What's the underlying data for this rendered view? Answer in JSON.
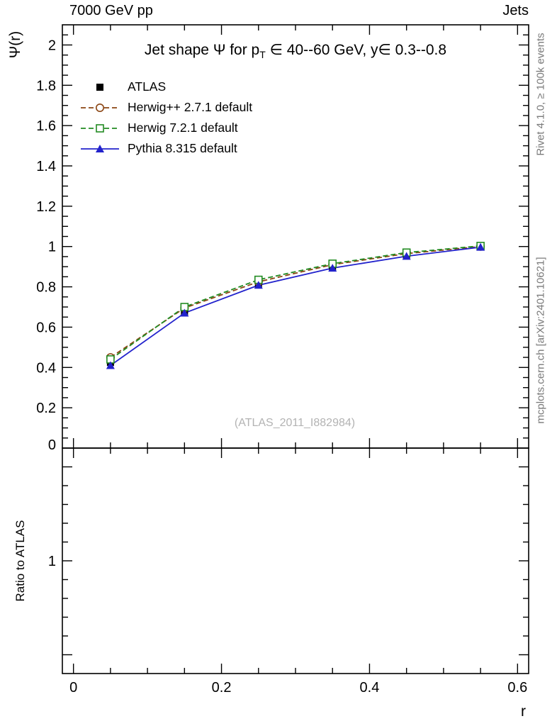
{
  "header": {
    "left": "7000 GeV pp",
    "right": "Jets"
  },
  "side_labels": {
    "top_right": "Rivet 4.1.0, ≥ 100k events",
    "bottom_right": "mcplots.cern.ch [arXiv:2401.10621]"
  },
  "watermark": "(ATLAS_2011_I882984)",
  "chart_data": {
    "type": "line",
    "title": "Jet shape Ψ for pT ∈ 40--60 GeV, y∈ 0.3--0.8",
    "title_parts": {
      "prefix": "Jet shape Ψ for p",
      "sub": "T",
      "suffix": " ∈ 40--60 GeV, y∈ 0.3--0.8"
    },
    "xlabel": "r",
    "ylabel": "Ψ(r)",
    "ratio_ylabel": "Ratio to ATLAS",
    "xlim": [
      -0.015,
      0.615
    ],
    "ylim": [
      0,
      2.1
    ],
    "ratio_ylim": [
      0.4,
      1.6
    ],
    "grid": false,
    "legend_position": "top-left",
    "x": [
      0.05,
      0.15,
      0.25,
      0.35,
      0.45,
      0.55
    ],
    "series": [
      {
        "name": "ATLAS",
        "marker": "filled-square",
        "color": "#000000",
        "line": "none",
        "values": [
          0.425,
          0.675,
          0.81,
          0.895,
          0.953,
          1.0
        ]
      },
      {
        "name": "Herwig++ 2.7.1 default",
        "marker": "open-circle",
        "color": "#8b4513",
        "line": "dashed",
        "values": [
          0.45,
          0.695,
          0.825,
          0.91,
          0.965,
          1.0
        ]
      },
      {
        "name": "Herwig 7.2.1 default",
        "marker": "open-square",
        "color": "#228b22",
        "line": "dashed",
        "values": [
          0.44,
          0.7,
          0.835,
          0.915,
          0.97,
          1.003
        ]
      },
      {
        "name": "Pythia 8.315 default",
        "marker": "filled-triangle",
        "color": "#2222cc",
        "line": "solid",
        "values": [
          0.41,
          0.67,
          0.808,
          0.893,
          0.952,
          0.997
        ]
      }
    ],
    "x_ticks": {
      "major": [
        0,
        0.2,
        0.4,
        0.6
      ],
      "labels": [
        "0",
        "0.2",
        "0.4",
        "0.6"
      ],
      "minor_step": 0.05
    },
    "y_ticks": {
      "major": [
        0,
        0.2,
        0.4,
        0.6,
        0.8,
        1.0,
        1.2,
        1.4,
        1.6,
        1.8,
        2.0
      ],
      "labels": [
        "0",
        "0.2",
        "0.4",
        "0.6",
        "0.8",
        "1",
        "1.2",
        "1.4",
        "1.6",
        "1.8",
        "2"
      ],
      "minor_step": 0.05
    },
    "ratio_ticks": {
      "major": [
        0.5,
        1.0,
        1.5
      ],
      "labels": [
        "",
        "1",
        ""
      ],
      "minor_step": 0.1
    }
  }
}
